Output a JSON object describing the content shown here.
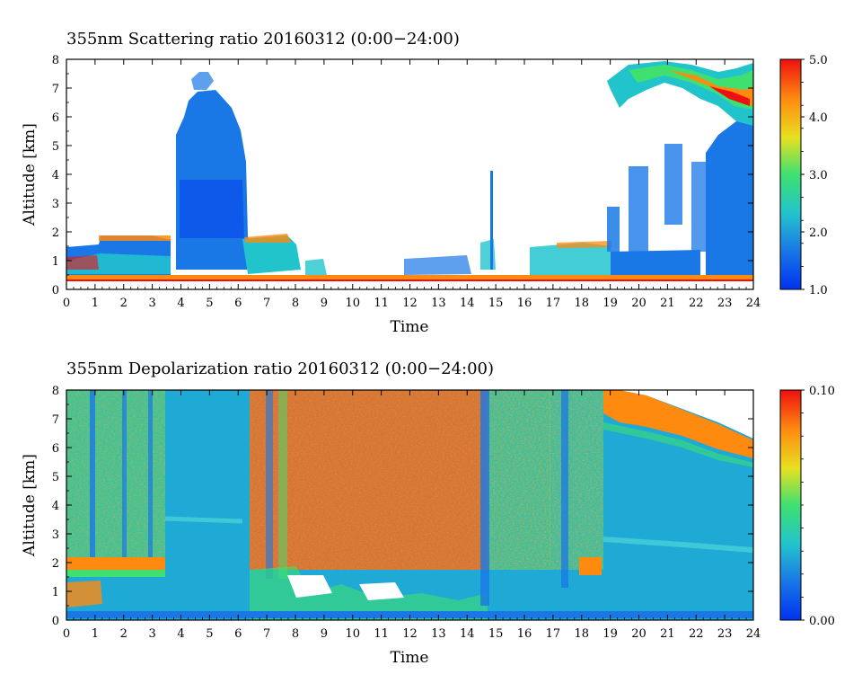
{
  "chart_data": [
    {
      "type": "heatmap",
      "title": "355nm Scattering ratio  20160312 (0:00−24:00)",
      "xlabel": "Time",
      "ylabel": "Altitude [km]",
      "xlim": [
        0,
        24
      ],
      "ylim": [
        0,
        8
      ],
      "xticks": [
        "0",
        "1",
        "2",
        "3",
        "4",
        "5",
        "6",
        "7",
        "8",
        "9",
        "10",
        "11",
        "12",
        "13",
        "14",
        "15",
        "16",
        "17",
        "18",
        "19",
        "20",
        "21",
        "22",
        "23",
        "24"
      ],
      "yticks": [
        "0",
        "1",
        "2",
        "3",
        "4",
        "5",
        "6",
        "7",
        "8"
      ],
      "colorbar": {
        "range": [
          1.0,
          5.0
        ],
        "ticks": [
          "1.0",
          "2.0",
          "3.0",
          "4.0",
          "5.0"
        ],
        "colors": [
          "#0033ee",
          "#1a78e6",
          "#22c4cc",
          "#3fe070",
          "#e8e020",
          "#ff8a10",
          "#ee1010"
        ]
      }
    },
    {
      "type": "heatmap",
      "title": "355nm Depolarization ratio  20160312 (0:00−24:00)",
      "xlabel": "Time",
      "ylabel": "Altitude [km]",
      "xlim": [
        0,
        24
      ],
      "ylim": [
        0,
        8
      ],
      "xticks": [
        "0",
        "1",
        "2",
        "3",
        "4",
        "5",
        "6",
        "7",
        "8",
        "9",
        "10",
        "11",
        "12",
        "13",
        "14",
        "15",
        "16",
        "17",
        "18",
        "19",
        "20",
        "21",
        "22",
        "23",
        "24"
      ],
      "yticks": [
        "0",
        "1",
        "2",
        "3",
        "4",
        "5",
        "6",
        "7",
        "8"
      ],
      "colorbar": {
        "range": [
          0.0,
          0.1
        ],
        "ticks": [
          "0.00",
          "0.10"
        ],
        "colors": [
          "#0033ee",
          "#1a78e6",
          "#22c4cc",
          "#3fe070",
          "#e8e020",
          "#ff8a10",
          "#ee1010"
        ]
      }
    }
  ]
}
